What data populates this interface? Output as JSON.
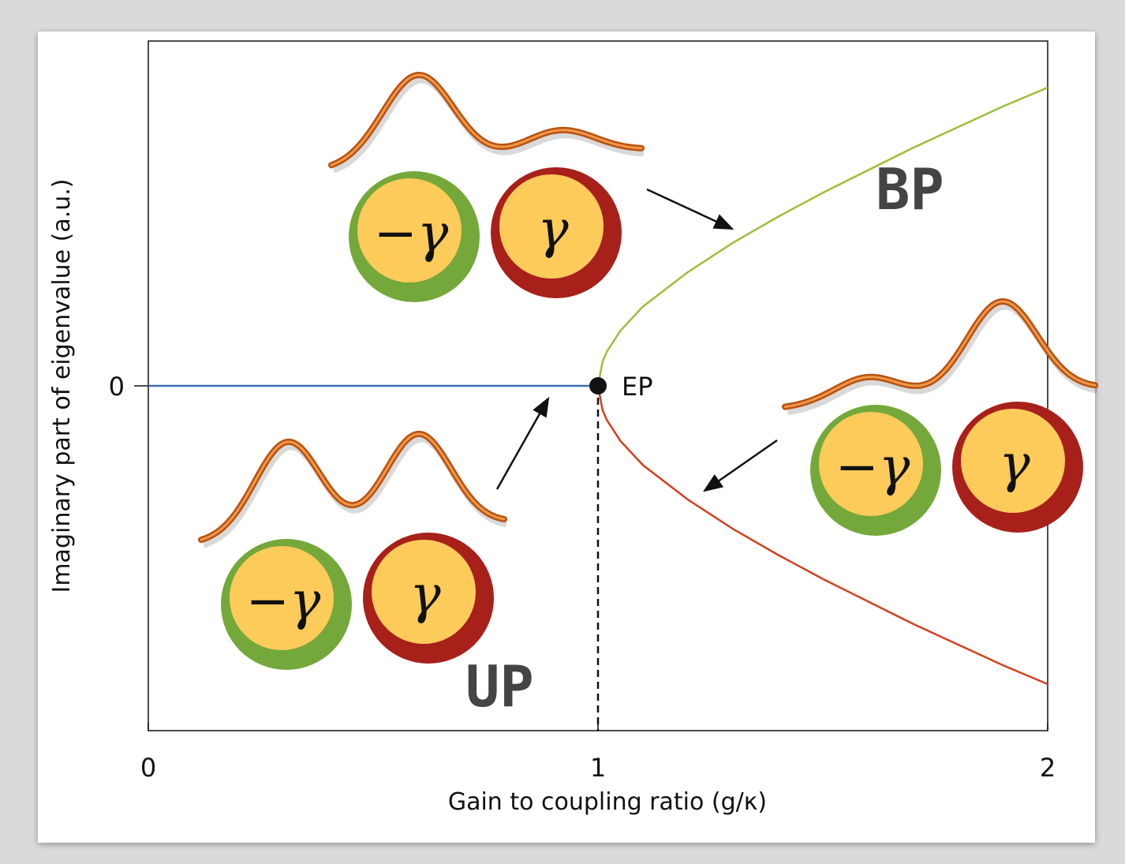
{
  "chart_data": {
    "type": "line",
    "xlabel": "Gain to coupling ratio (g/κ)",
    "ylabel": "Imaginary part of eigenvalue (a.u.)",
    "x": [
      0,
      0.25,
      0.5,
      0.75,
      1,
      1.01,
      1.02,
      1.05,
      1.1,
      1.2,
      1.3,
      1.4,
      1.5,
      1.6,
      1.7,
      1.8,
      1.9,
      2
    ],
    "series": [
      {
        "color": "#3d6db3",
        "values": [
          0,
          0,
          0,
          0,
          0,
          null,
          null,
          null,
          null,
          null,
          null,
          null,
          null,
          null,
          null,
          null,
          null,
          null
        ]
      },
      {
        "color": "#9bbf3a",
        "values": [
          null,
          null,
          null,
          null,
          0,
          0.14,
          0.2,
          0.32,
          0.46,
          0.66,
          0.83,
          0.98,
          1.12,
          1.25,
          1.38,
          1.5,
          1.62,
          1.73
        ]
      },
      {
        "color": "#d2401f",
        "values": [
          null,
          null,
          null,
          null,
          0,
          -0.14,
          -0.2,
          -0.32,
          -0.46,
          -0.66,
          -0.83,
          -0.98,
          -1.12,
          -1.25,
          -1.38,
          -1.5,
          -1.62,
          -1.73
        ]
      }
    ],
    "xlim": [
      0,
      2
    ],
    "xticks": [
      0,
      1,
      2
    ],
    "ylim": [
      -2,
      2
    ],
    "yticks": [
      0
    ],
    "exceptional_point": {
      "label": "EP",
      "x": 1,
      "y": 0
    },
    "region_labels": [
      "BP",
      "UP"
    ],
    "insets": [
      {
        "loss_label": "−γ",
        "gain_label": "γ"
      },
      {
        "loss_label": "−γ",
        "gain_label": "γ"
      },
      {
        "loss_label": "−γ",
        "gain_label": "γ"
      }
    ]
  }
}
